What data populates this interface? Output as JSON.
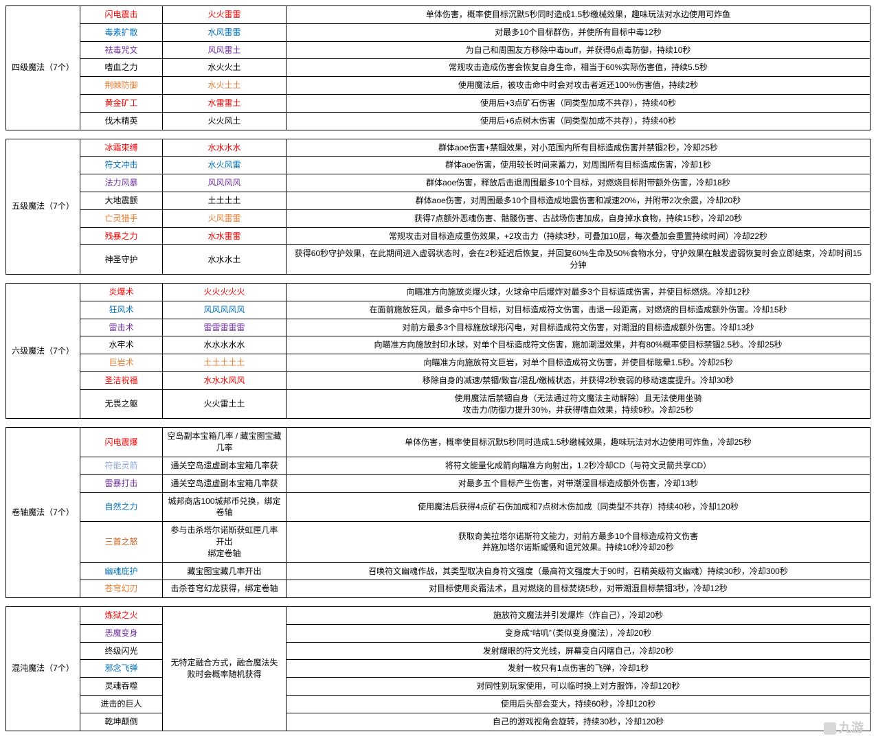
{
  "colors": {
    "red": "#ff0000",
    "blue": "#0070c0",
    "purple": "#7030a0",
    "black": "#000000",
    "orange": "#ed7d31",
    "brown": "#c55a11",
    "lightblue": "#8eaadb",
    "green": "#00b050"
  },
  "watermark": "九游",
  "groups": [
    {
      "title": "四级魔法（7个）",
      "rows": [
        {
          "name": "闪电震击",
          "nameColor": "red",
          "combo": "火火雷雷",
          "comboColor": "red",
          "desc": "单体伤害，概率使目标沉默5秒同时造成1.5秒缴械效果，趣味玩法对水边使用可炸鱼"
        },
        {
          "name": "毒素扩散",
          "nameColor": "blue",
          "combo": "水风雷雷",
          "comboColor": "blue",
          "desc": "对最多10个目标群伤，并使所有目标中毒12秒"
        },
        {
          "name": "祛毒咒文",
          "nameColor": "purple",
          "combo": "风风雷土",
          "comboColor": "purple",
          "desc": "为自己和周围友方移除中毒buff，并获得6点毒防御，持续10秒"
        },
        {
          "name": "嗜血之力",
          "nameColor": "black",
          "combo": "水火火土",
          "comboColor": "black",
          "desc": "常规攻击造成伤害会恢复自身生命，相当于60%实际伤害值，持续5.5秒"
        },
        {
          "name": "荆棘防御",
          "nameColor": "orange",
          "combo": "水火土土",
          "comboColor": "orange",
          "desc": "使用魔法后，被攻击命中时会对攻击者返还100%伤害值，持续2秒"
        },
        {
          "name": "黄金矿工",
          "nameColor": "red",
          "combo": "水雷雷土",
          "comboColor": "red",
          "desc": "使用后+3点矿石伤害（同类型加成不共存），持续40秒"
        },
        {
          "name": "伐木精英",
          "nameColor": "black",
          "combo": "火火风土",
          "comboColor": "black",
          "desc": "使用后+6点树木伤害（同类型加成不共存），持续40秒"
        }
      ]
    },
    {
      "title": "五级魔法（7个）",
      "rows": [
        {
          "name": "冰霜束缚",
          "nameColor": "red",
          "combo": "水水水水",
          "comboColor": "red",
          "desc": "群体aoe伤害+禁锢效果，对小范围内所有目标造成伤害并禁锢2秒，冷却25秒"
        },
        {
          "name": "符文冲击",
          "nameColor": "blue",
          "combo": "水火风雷",
          "comboColor": "blue",
          "desc": "群体aoe伤害，使用较长时间来蓄力，对周围所有目标造成伤害，冷却1秒"
        },
        {
          "name": "法力风暴",
          "nameColor": "purple",
          "combo": "风风风风",
          "comboColor": "purple",
          "desc": "群体aoe伤害，释放后击退周围最多10个目标，对燃烧目标附带额外伤害，冷却18秒"
        },
        {
          "name": "大地震颤",
          "nameColor": "black",
          "combo": "土土土土",
          "comboColor": "black",
          "desc": "群体aoe伤害，对周围最多10个目标造成地震伤害和减速20%，并附带2次余震，冷却20秒"
        },
        {
          "name": "亡灵猎手",
          "nameColor": "orange",
          "combo": "火风雷雷",
          "comboColor": "orange",
          "desc": "获得7点额外恶魂伤害、骷髅伤害、古战场伤害加成，自身掉水食物，持续15秒，冷却20秒"
        },
        {
          "name": "残暴之力",
          "nameColor": "red",
          "combo": "水水雷雷",
          "comboColor": "red",
          "desc": "常规攻击对目标造成重伤效果，+2攻击力（持续3秒，可叠加10层，每次叠加会重置持续时间）冷却22秒"
        },
        {
          "name": "神圣守护",
          "nameColor": "black",
          "combo": "水水水土",
          "comboColor": "black",
          "desc": "获得60秒守护效果，在此期间进入虚弱状态时，会在2秒延迟后恢复，并回复60%生命及50%食物水分，守护效果在触发虚弱恢复时会立即结束，冷却时间15分钟"
        }
      ]
    },
    {
      "title": "六级魔法（7个）",
      "rows": [
        {
          "name": "炎爆术",
          "nameColor": "red",
          "combo": "火火火火火",
          "comboColor": "red",
          "desc": "向瞄准方向施放炎爆火球，火球命中后爆炸对最多3个目标造成伤害，并使目标燃烧。冷却12秒"
        },
        {
          "name": "狂风术",
          "nameColor": "blue",
          "combo": "风风风风风",
          "comboColor": "blue",
          "desc": "在面前施放狂风，最多命中5个目标，对目标造成符文伤害，击退一段距离，对燃烧的目标造成额外伤害。冷却15秒"
        },
        {
          "name": "雷击术",
          "nameColor": "purple",
          "combo": "雷雷雷雷雷",
          "comboColor": "purple",
          "desc": "对前方最多3个目标施放球形闪电，对目标造成符文伤害，对潮湿的目标造成额外伤害。冷却13秒"
        },
        {
          "name": "水牢术",
          "nameColor": "black",
          "combo": "水水水水水",
          "comboColor": "black",
          "desc": "向瞄准方向施放封印水球，对单个目标造成符文伤害，施加潮湿效果，并有80%概率使目标禁锢2.5秒。冷却25秒"
        },
        {
          "name": "巨岩术",
          "nameColor": "orange",
          "combo": "土土土土土",
          "comboColor": "orange",
          "desc": "向瞄准方向施放符文巨岩，对单个目标造成符文伤害，并使目标眩晕1.5秒。冷却25秒"
        },
        {
          "name": "圣洁祝福",
          "nameColor": "red",
          "combo": "水水水风风",
          "comboColor": "red",
          "desc": "移除自身的减速/禁锢/致盲/混乱/缴械状态，并获得2秒衰弱的移动速度提升。冷却30秒"
        },
        {
          "name": "无畏之躯",
          "nameColor": "black",
          "combo": "火火雷土土",
          "comboColor": "black",
          "desc": "使用魔法后禁锢自身（无法通过符文魔法主动解除）且无法使用坐骑\n攻击力/防御力提升30%，并获得嗜血效果，持续9秒。冷却25秒"
        }
      ]
    },
    {
      "title": "卷轴魔法（7个）",
      "rows": [
        {
          "name": "闪电震爆",
          "nameColor": "red",
          "combo": "空岛副本宝箱几率 / 藏宝图宝藏几率",
          "comboColor": "black",
          "desc": "单体伤害，概率使目标沉默5秒同时造成1.5秒缴械效果，趣味玩法对水边使用可炸鱼，冷却25秒"
        },
        {
          "name": "符能灵箭",
          "nameColor": "lightblue",
          "combo": "通关空岛遗虚副本宝箱几率获",
          "comboColor": "black",
          "desc": "将符文能量化成箭向瞄准方向射出，1.2秒冷却CD（与符文灵箭共享CD）"
        },
        {
          "name": "雷暴打击",
          "nameColor": "purple",
          "combo": "通关空岛遗虚副本宝箱几率获",
          "comboColor": "black",
          "desc": "对最多五个目标产生伤害，对带潮湿目标造成额外伤害，冷却13秒"
        },
        {
          "name": "自然之力",
          "nameColor": "blue",
          "combo": "城邦商店100城邦币兑换，绑定卷轴",
          "comboColor": "black",
          "desc": "使用魔法后获得4点矿石伤加成和7点树木伤加成（同类型不共存）持续40秒，冷却120秒"
        },
        {
          "name": "三首之怒",
          "nameColor": "brown",
          "combo": "参与击杀塔尔诺斯获虹匣几率开出\n绑定卷轴",
          "comboColor": "black",
          "desc": "获取奇美拉塔尔诺斯符文能力，对前方最多10个目标造成符文伤害\n并施加塔尔诺斯威慑和诅咒效果。持续10秒冷却20秒"
        },
        {
          "name": "幽魂庇护",
          "nameColor": "blue",
          "combo": "藏宝图宝藏几率开出",
          "comboColor": "black",
          "desc": "召唤符文幽魂作战，其类型取决自身符文强度（最高符文强度大于90时，召精英级符文幽魂）持续30秒，冷却300秒"
        },
        {
          "name": "苍穹幻刃",
          "nameColor": "orange",
          "combo": "击杀苍穹幻龙获得，绑定卷轴",
          "comboColor": "black",
          "desc": "对目标使用炎霜法术，且对燃烧的目标焚烧5秒，对带潮湿目标禁锢3秒，冷却12秒"
        }
      ]
    },
    {
      "title": "混沌魔法（7个）",
      "comboShared": "无特定融合方式，融合魔法失败时会概率随机获得",
      "rows": [
        {
          "name": "炼狱之火",
          "nameColor": "red",
          "desc": "施放符文魔法并引发爆炸（炸自己），冷却20秒"
        },
        {
          "name": "恶魔变身",
          "nameColor": "purple",
          "desc": "变身成“咕叽”（类似变身魔法），冷却20秒"
        },
        {
          "name": "终级闪光",
          "nameColor": "black",
          "desc": "发射耀眼的符文光线，屏幕变白闪瞎自己，冷却20秒"
        },
        {
          "name": "邪念飞弹",
          "nameColor": "blue",
          "desc": "发射一枚只有1点伤害的飞弹，冷却1秒"
        },
        {
          "name": "灵魂吞噬",
          "nameColor": "black",
          "desc": "对同性别玩家使用，可以临时换上对方服饰，冷却120秒"
        },
        {
          "name": "进击的巨人",
          "nameColor": "black",
          "desc": "使用后头部会变大，持续60秒，冷却120秒"
        },
        {
          "name": "乾坤颠倒",
          "nameColor": "black",
          "desc": "自己的游戏视角会旋转，持续30秒，冷却120秒"
        }
      ]
    }
  ]
}
